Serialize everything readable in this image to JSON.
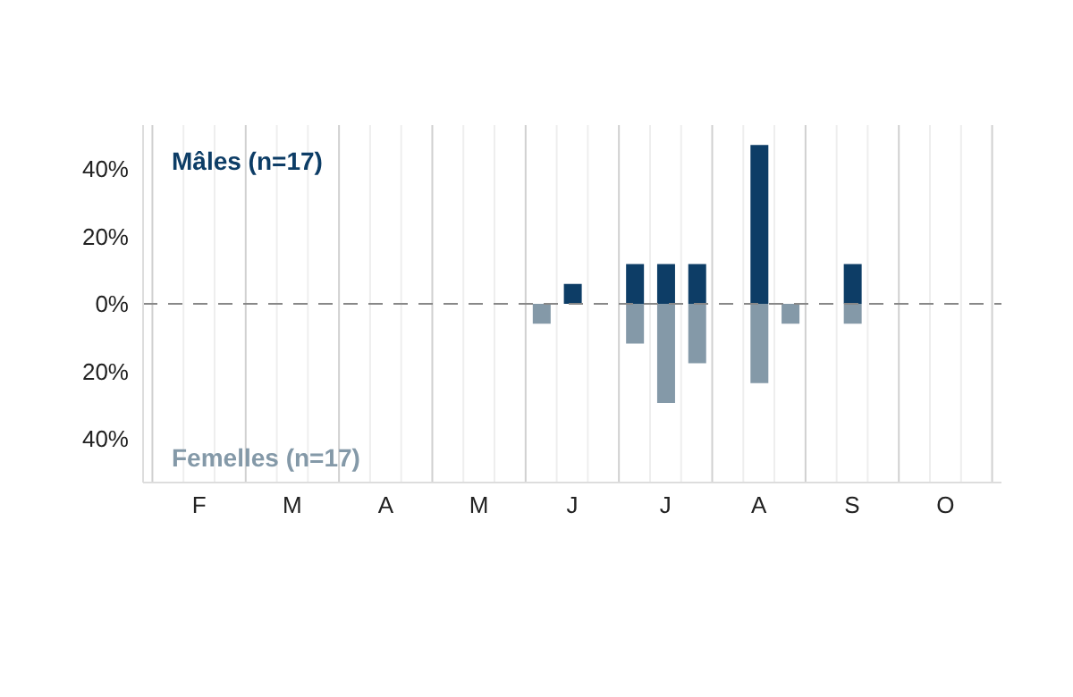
{
  "chart_data": {
    "type": "bar",
    "stacked": true,
    "categories": [
      null,
      "F",
      null,
      null,
      "M",
      null,
      null,
      "A",
      null,
      null,
      "M",
      null,
      null,
      "J",
      null,
      null,
      "J",
      null,
      null,
      "A",
      null,
      null,
      "S",
      null,
      null,
      "O",
      null
    ],
    "series": [
      {
        "name": "Mâles (n=17)",
        "color": "#0d3d66",
        "values": [
          null,
          null,
          null,
          null,
          null,
          null,
          null,
          null,
          null,
          null,
          null,
          null,
          null,
          5.9,
          null,
          11.8,
          11.8,
          11.8,
          null,
          47.1,
          null,
          null,
          11.8,
          null,
          null,
          null,
          null
        ]
      },
      {
        "name": "Femelles (n=17)",
        "color": "#8499a8",
        "values": [
          null,
          null,
          null,
          null,
          null,
          null,
          null,
          null,
          null,
          null,
          null,
          null,
          -5.9,
          null,
          null,
          -11.8,
          -29.4,
          -17.6,
          null,
          -23.5,
          -5.9,
          null,
          -5.9,
          null,
          null,
          null,
          null
        ]
      }
    ],
    "ylim": [
      -53,
      53
    ],
    "yticks": [
      {
        "value": -40,
        "label": "40%"
      },
      {
        "value": -20,
        "label": "20%"
      },
      {
        "value": 0,
        "label": "0%"
      },
      {
        "value": 20,
        "label": "20%"
      },
      {
        "value": 40,
        "label": "40%"
      }
    ],
    "ref_lines": [
      {
        "axis": "y",
        "value": 0,
        "label": null,
        "color": "#888888",
        "line_style": "dashed"
      }
    ],
    "grid": "x"
  }
}
